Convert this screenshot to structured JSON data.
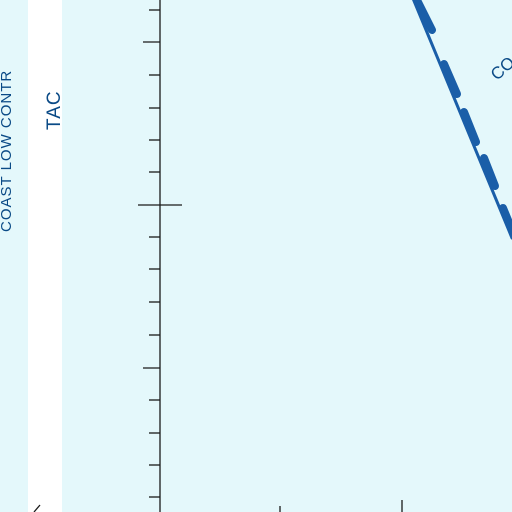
{
  "map": {
    "labels": {
      "coast_low_control": "COAST LOW CONTR",
      "tac": "TAC",
      "co": "CO"
    },
    "colors": {
      "water": "#e4f8fb",
      "white_band": "#ffffff",
      "label_blue": "#0a4a86",
      "route_blue": "#1a5ea8",
      "tick_black": "#1a1a1a"
    }
  }
}
